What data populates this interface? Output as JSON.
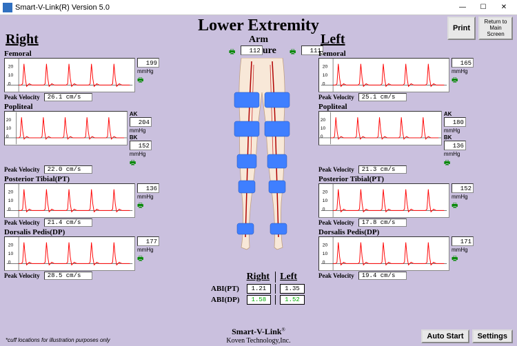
{
  "window": {
    "title": "Smart-V-Link(R)  Version 5.0"
  },
  "header": {
    "main_title": "Lower Extremity",
    "print": "Print",
    "return": "Return to Main Screen"
  },
  "arm": {
    "label1": "Arm",
    "label2": "Pressure",
    "right_val": "112",
    "left_val": "111"
  },
  "sides": {
    "right": "Right",
    "left": "Left"
  },
  "right": {
    "femoral": {
      "label": "Femoral",
      "pressure": "199",
      "pv": "26.1 cm/s"
    },
    "popliteal": {
      "label": "Popliteal",
      "ak": "204",
      "bk": "152",
      "pv": "22.0 cm/s"
    },
    "pt": {
      "label": "Posterior Tibial(PT)",
      "pressure": "136",
      "pv": "21.4 cm/s"
    },
    "dp": {
      "label": "Dorsalis Pedis(DP)",
      "pressure": "177",
      "pv": "28.5 cm/s"
    }
  },
  "left": {
    "femoral": {
      "label": "Femoral",
      "pressure": "165",
      "pv": "25.1 cm/s"
    },
    "popliteal": {
      "label": "Popliteal",
      "ak": "180",
      "bk": "136",
      "pv": "21.3 cm/s"
    },
    "pt": {
      "label": "Posterior Tibial(PT)",
      "pressure": "152",
      "pv": "17.8 cm/s"
    },
    "dp": {
      "label": "Dorsalis Pedis(DP)",
      "pressure": "171",
      "pv": "19.4 cm/s"
    }
  },
  "labels": {
    "mmhg": "mmHg",
    "pv": "Peak Velocity",
    "ak": "AK",
    "bk": "BK"
  },
  "abi": {
    "right_hdr": "Right",
    "left_hdr": "Left",
    "pt_label": "ABI(PT)",
    "dp_label": "ABI(DP)",
    "pt_right": "1.21",
    "pt_left": "1.35",
    "dp_right": "1.58",
    "dp_left": "1.52"
  },
  "footer": {
    "product": "Smart-V-Link",
    "reg": "®",
    "company": "Koven Technology,Inc."
  },
  "disclaimer": "*cuff locations for illustration purposes only",
  "buttons": {
    "autostart": "Auto Start",
    "settings": "Settings"
  },
  "waveform": {
    "color": "#ff0000",
    "grid_color": "#bbb",
    "yticks": [
      "20",
      "10",
      "0"
    ]
  }
}
